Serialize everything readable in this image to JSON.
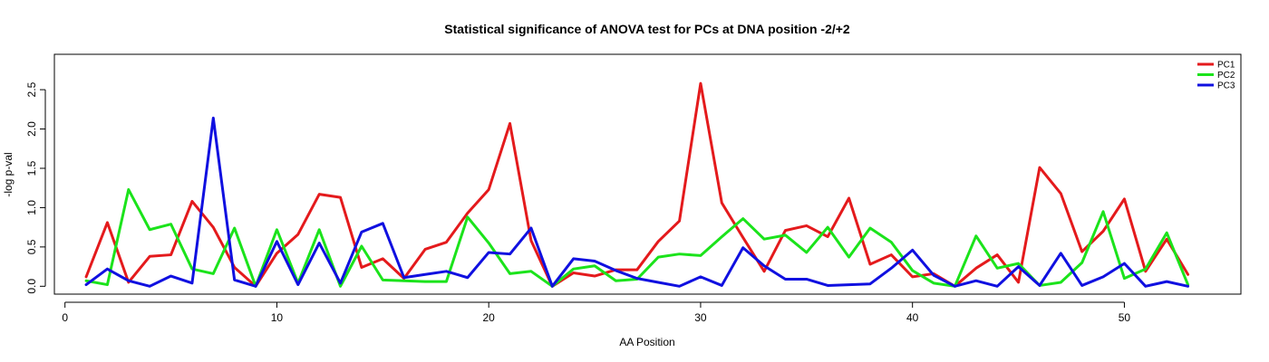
{
  "chart_data": {
    "type": "line",
    "title": "Statistical significance of ANOVA test for PCs at DNA position -2/+2",
    "xlabel": "AA Position",
    "ylabel": "-log p-val",
    "xlim": [
      -0.5,
      55.5
    ],
    "ylim": [
      -0.1,
      2.95
    ],
    "x_ticks": [
      0,
      10,
      20,
      30,
      40,
      50
    ],
    "y_ticks": [
      0.0,
      0.5,
      1.0,
      1.5,
      2.0,
      2.5
    ],
    "y_tick_labels": [
      "0.0",
      "0.5",
      "1.0",
      "1.5",
      "2.0",
      "2.5"
    ],
    "grid": false,
    "legend_position": "top-right",
    "x": [
      1,
      2,
      3,
      4,
      5,
      6,
      7,
      8,
      9,
      10,
      11,
      12,
      13,
      14,
      15,
      16,
      17,
      18,
      19,
      20,
      21,
      22,
      23,
      24,
      25,
      26,
      27,
      28,
      29,
      30,
      31,
      32,
      33,
      34,
      35,
      36,
      37,
      38,
      39,
      40,
      41,
      42,
      43,
      44,
      45,
      46,
      47,
      48,
      49,
      50,
      51,
      52,
      53
    ],
    "series": [
      {
        "name": "PC1",
        "color": "#e41a1c",
        "values": [
          0.12,
          0.81,
          0.05,
          0.38,
          0.4,
          1.08,
          0.75,
          0.24,
          0.0,
          0.42,
          0.66,
          1.17,
          1.13,
          0.24,
          0.35,
          0.1,
          0.47,
          0.56,
          0.93,
          1.23,
          2.07,
          0.58,
          0.0,
          0.17,
          0.13,
          0.21,
          0.21,
          0.57,
          0.83,
          2.58,
          1.06,
          0.62,
          0.19,
          0.71,
          0.77,
          0.63,
          1.12,
          0.28,
          0.4,
          0.12,
          0.16,
          0.0,
          0.23,
          0.4,
          0.05,
          1.51,
          1.18,
          0.44,
          0.7,
          1.11,
          0.19,
          0.6,
          0.15
        ]
      },
      {
        "name": "PC2",
        "color": "#1be31b",
        "values": [
          0.07,
          0.02,
          1.23,
          0.72,
          0.79,
          0.22,
          0.16,
          0.74,
          0.0,
          0.72,
          0.04,
          0.72,
          0.0,
          0.51,
          0.08,
          0.07,
          0.06,
          0.06,
          0.88,
          0.55,
          0.16,
          0.19,
          0.0,
          0.22,
          0.26,
          0.07,
          0.09,
          0.37,
          0.41,
          0.39,
          0.63,
          0.86,
          0.6,
          0.65,
          0.43,
          0.75,
          0.37,
          0.74,
          0.56,
          0.2,
          0.04,
          0.0,
          0.64,
          0.23,
          0.29,
          0.01,
          0.05,
          0.3,
          0.95,
          0.1,
          0.22,
          0.68,
          0.02
        ]
      },
      {
        "name": "PC3",
        "color": "#1010e0",
        "values": [
          0.02,
          0.22,
          0.07,
          0.0,
          0.13,
          0.04,
          2.14,
          0.08,
          0.0,
          0.57,
          0.02,
          0.55,
          0.04,
          0.69,
          0.8,
          0.11,
          0.15,
          0.19,
          0.11,
          0.43,
          0.41,
          0.74,
          0.0,
          0.35,
          0.32,
          0.2,
          0.1,
          0.05,
          0.0,
          0.12,
          0.01,
          0.49,
          0.26,
          0.09,
          0.09,
          0.01,
          0.02,
          0.03,
          0.23,
          0.46,
          0.14,
          0.0,
          0.07,
          0.0,
          0.25,
          0.01,
          0.42,
          0.01,
          0.12,
          0.29,
          0.0,
          0.06,
          0.0
        ]
      }
    ]
  }
}
